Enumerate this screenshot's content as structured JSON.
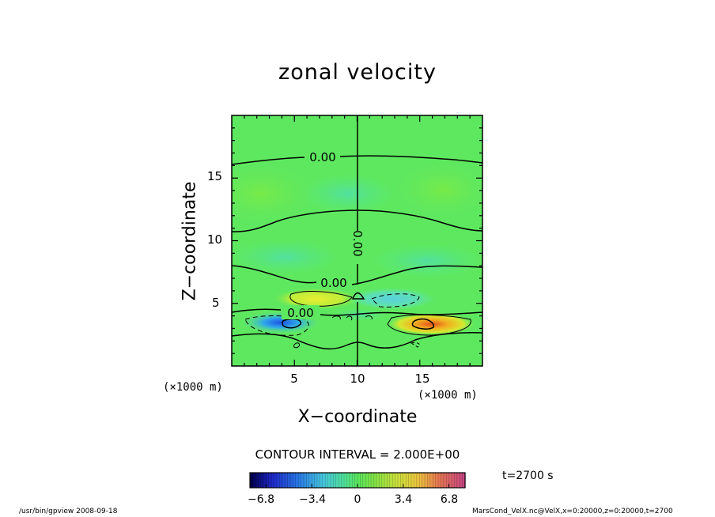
{
  "chart_data": {
    "type": "contour",
    "title": "zonal velocity",
    "xlabel": "X−coordinate",
    "ylabel": "Z−coordinate",
    "x_unit_label": "(×1000 m)",
    "y_unit_label": "(×1000 m)",
    "xlim": [
      0,
      20
    ],
    "ylim": [
      0,
      20
    ],
    "x_ticks": [
      5,
      10,
      15
    ],
    "y_ticks": [
      5,
      10,
      15
    ],
    "contour_interval_text": "CONTOUR INTERVAL = 2.000E+00",
    "contour_labels": [
      "0.00",
      "0.00",
      "0.00",
      "0.00"
    ],
    "colorbar": {
      "range": [
        -8,
        8
      ],
      "ticks": [
        -6.8,
        -3.4,
        0,
        3.4,
        6.8
      ],
      "tick_labels": [
        "−6.8",
        "−3.4",
        "0",
        "3.4",
        "6.8"
      ]
    },
    "time_text": "t=2700 s",
    "features": [
      {
        "kind": "negative-core",
        "x": 4.5,
        "z": 3.2
      },
      {
        "kind": "positive-core",
        "x": 14.9,
        "z": 3.1
      },
      {
        "kind": "positive-region",
        "x": 7.5,
        "z": 5.2
      },
      {
        "kind": "negative-region",
        "x": 12.0,
        "z": 5.1
      }
    ]
  },
  "footer": {
    "left": "/usr/bin/gpview   2008-09-18",
    "right": "MarsCond_VelX.nc@VelX,x=0:20000,z=0:20000,t=2700"
  }
}
